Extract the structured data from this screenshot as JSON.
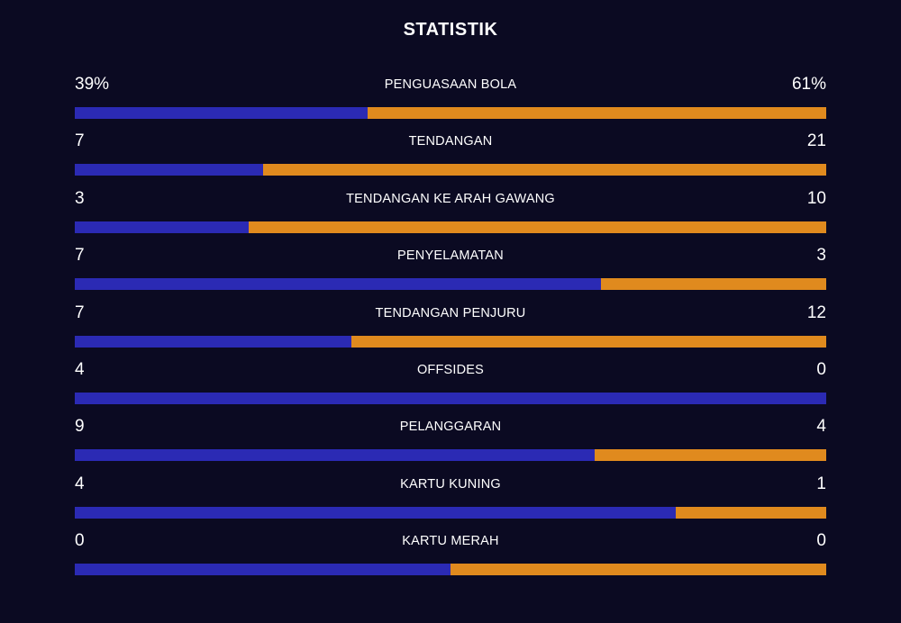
{
  "title": "STATISTIK",
  "colors": {
    "background": "#0b0a22",
    "home": "#2b2ab4",
    "away": "#e08a1e",
    "text": "#ffffff"
  },
  "stats": [
    {
      "label": "PENGUASAAN BOLA",
      "home": "39%",
      "away": "61%",
      "home_share": 0.39
    },
    {
      "label": "TENDANGAN",
      "home": "7",
      "away": "21",
      "home_share": 0.25
    },
    {
      "label": "TENDANGAN KE ARAH GAWANG",
      "home": "3",
      "away": "10",
      "home_share": 0.231
    },
    {
      "label": "PENYELAMATAN",
      "home": "7",
      "away": "3",
      "home_share": 0.7
    },
    {
      "label": "TENDANGAN PENJURU",
      "home": "7",
      "away": "12",
      "home_share": 0.368
    },
    {
      "label": "OFFSIDES",
      "home": "4",
      "away": "0",
      "home_share": 1.0
    },
    {
      "label": "PELANGGARAN",
      "home": "9",
      "away": "4",
      "home_share": 0.692
    },
    {
      "label": "KARTU KUNING",
      "home": "4",
      "away": "1",
      "home_share": 0.8
    },
    {
      "label": "KARTU MERAH",
      "home": "0",
      "away": "0",
      "home_share": 0.5
    }
  ]
}
